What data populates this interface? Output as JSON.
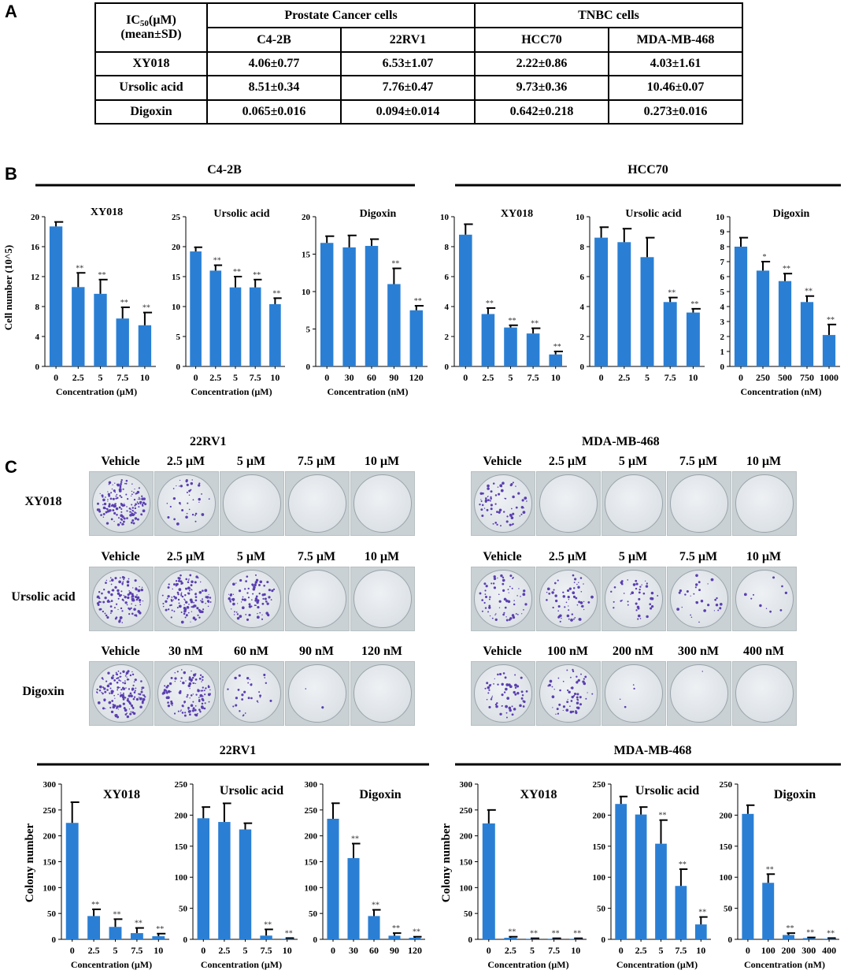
{
  "panels": {
    "A": "A",
    "B": "B",
    "C": "C"
  },
  "table": {
    "corner_line1_pre": "IC",
    "corner_sub": "50",
    "corner_line1_post": "(µM)",
    "corner_line2": "(mean±SD)",
    "groups": [
      "Prostate Cancer cells",
      "TNBC cells"
    ],
    "columns": [
      "C4-2B",
      "22RV1",
      "HCC70",
      "MDA-MB-468"
    ],
    "rows": [
      {
        "name": "XY018",
        "values": [
          "4.06±0.77",
          "6.53±1.07",
          "2.22±0.86",
          "4.03±1.61"
        ]
      },
      {
        "name": "Ursolic acid",
        "values": [
          "8.51±0.34",
          "7.76±0.47",
          "9.73±0.36",
          "10.46±0.07"
        ]
      },
      {
        "name": "Digoxin",
        "values": [
          "0.065±0.016",
          "0.094±0.014",
          "0.642±0.218",
          "0.273±0.016"
        ]
      }
    ]
  },
  "panel_c": {
    "groups": [
      {
        "title": "22RV1",
        "rows": [
          {
            "label": "XY018",
            "headers": [
              "Vehicle",
              "2.5 µM",
              "5 µM",
              "7.5 µM",
              "10 µM"
            ]
          },
          {
            "label": "Ursolic acid",
            "headers": [
              "Vehicle",
              "2.5 µM",
              "5 µM",
              "7.5 µM",
              "10 µM"
            ]
          },
          {
            "label": "Digoxin",
            "headers": [
              "Vehicle",
              "30 nM",
              "60 nM",
              "90 nM",
              "120 nM"
            ]
          }
        ]
      },
      {
        "title": "MDA-MB-468",
        "rows": [
          {
            "label": "",
            "headers": [
              "Vehicle",
              "2.5 µM",
              "5 µM",
              "7.5 µM",
              "10 µM"
            ]
          },
          {
            "label": "",
            "headers": [
              "Vehicle",
              "2.5 µM",
              "5 µM",
              "7.5 µM",
              "10 µM"
            ]
          },
          {
            "label": "",
            "headers": [
              "Vehicle",
              "100 nM",
              "200 nM",
              "300 nM",
              "400 nM"
            ]
          }
        ]
      }
    ]
  },
  "chart_data": [
    {
      "type": "bar",
      "group": "C4-2B",
      "title": "XY018",
      "categories": [
        "0",
        "2.5",
        "5",
        "7.5",
        "10"
      ],
      "values": [
        18.7,
        10.6,
        9.7,
        6.4,
        5.5
      ],
      "errors": [
        0.6,
        1.9,
        1.9,
        1.5,
        1.7
      ],
      "significance": [
        "",
        "**",
        "**",
        "**",
        "**"
      ],
      "ylim": [
        0,
        20
      ],
      "yticks": [
        0,
        4,
        8,
        12,
        16,
        20
      ],
      "xlabel": "Concentration (µM)",
      "ylabel": "Cell number (10^5)"
    },
    {
      "type": "bar",
      "group": "C4-2B",
      "title": "Ursolic acid",
      "categories": [
        "0",
        "2.5",
        "5",
        "7.5",
        "10"
      ],
      "values": [
        19.2,
        16.0,
        13.2,
        13.2,
        10.4
      ],
      "errors": [
        0.7,
        0.9,
        1.8,
        1.3,
        1.0
      ],
      "significance": [
        "",
        "**",
        "**",
        "**",
        "**"
      ],
      "ylim": [
        0,
        25
      ],
      "yticks": [
        0,
        5,
        10,
        15,
        20,
        25
      ],
      "xlabel": "Concentration (µM)",
      "ylabel": ""
    },
    {
      "type": "bar",
      "group": "C4-2B",
      "title": "Digoxin",
      "categories": [
        "0",
        "30",
        "60",
        "90",
        "120"
      ],
      "values": [
        16.5,
        15.9,
        16.1,
        11.0,
        7.5
      ],
      "errors": [
        0.9,
        1.6,
        0.9,
        2.1,
        0.6
      ],
      "significance": [
        "",
        "",
        "",
        "**",
        "**"
      ],
      "ylim": [
        0,
        20
      ],
      "yticks": [
        0,
        5,
        10,
        15,
        20
      ],
      "xlabel": "Concentration (nM)",
      "ylabel": ""
    },
    {
      "type": "bar",
      "group": "HCC70",
      "title": "XY018",
      "categories": [
        "0",
        "2.5",
        "5",
        "7.5",
        "10"
      ],
      "values": [
        8.8,
        3.5,
        2.6,
        2.2,
        0.8
      ],
      "errors": [
        0.7,
        0.4,
        0.15,
        0.35,
        0.2
      ],
      "significance": [
        "",
        "**",
        "**",
        "**",
        "**"
      ],
      "ylim": [
        0,
        10
      ],
      "yticks": [
        0,
        2,
        4,
        6,
        8,
        10
      ],
      "xlabel": "",
      "ylabel": ""
    },
    {
      "type": "bar",
      "group": "HCC70",
      "title": "Ursolic acid",
      "categories": [
        "0",
        "2.5",
        "5",
        "7.5",
        "10"
      ],
      "values": [
        8.6,
        8.3,
        7.3,
        4.3,
        3.6
      ],
      "errors": [
        0.7,
        0.9,
        1.3,
        0.3,
        0.25
      ],
      "significance": [
        "",
        "",
        "",
        "**",
        "**"
      ],
      "ylim": [
        0,
        10
      ],
      "yticks": [
        0,
        2,
        4,
        6,
        8,
        10
      ],
      "xlabel": "",
      "ylabel": ""
    },
    {
      "type": "bar",
      "group": "HCC70",
      "title": "Digoxin",
      "categories": [
        "0",
        "250",
        "500",
        "750",
        "1000"
      ],
      "values": [
        8.0,
        6.4,
        5.7,
        4.3,
        2.1
      ],
      "errors": [
        0.6,
        0.6,
        0.5,
        0.4,
        0.7
      ],
      "significance": [
        "",
        "*",
        "**",
        "**",
        "**"
      ],
      "ylim": [
        0,
        10
      ],
      "yticks": [
        0,
        1,
        2,
        3,
        4,
        5,
        6,
        7,
        8,
        9,
        10
      ],
      "xlabel": "Concentration (nM)",
      "ylabel": ""
    },
    {
      "type": "bar",
      "group": "22RV1",
      "title": "XY018",
      "categories": [
        "0",
        "2.5",
        "5",
        "7.5",
        "10"
      ],
      "values": [
        225,
        45,
        24,
        12,
        6
      ],
      "errors": [
        40,
        13,
        15,
        10,
        5
      ],
      "significance": [
        "",
        "**",
        "**",
        "**",
        "**"
      ],
      "ylim": [
        0,
        300
      ],
      "yticks": [
        0,
        50,
        100,
        150,
        200,
        250,
        300
      ],
      "xlabel": "Concentration (µM)",
      "ylabel": "Colony number"
    },
    {
      "type": "bar",
      "group": "22RV1",
      "title": "Ursolic acid",
      "categories": [
        "0",
        "2.5",
        "5",
        "7.5",
        "10"
      ],
      "values": [
        195,
        189,
        177,
        6,
        1
      ],
      "errors": [
        18,
        30,
        10,
        10,
        1
      ],
      "significance": [
        "",
        "",
        "",
        "**",
        "**"
      ],
      "ylim": [
        0,
        250
      ],
      "yticks": [
        0,
        50,
        100,
        150,
        200,
        250
      ],
      "xlabel": "Concentration (µM)",
      "ylabel": ""
    },
    {
      "type": "bar",
      "group": "22RV1",
      "title": "Digoxin",
      "categories": [
        "0",
        "30",
        "60",
        "90",
        "120"
      ],
      "values": [
        233,
        157,
        45,
        7,
        3
      ],
      "errors": [
        30,
        28,
        12,
        5,
        2
      ],
      "significance": [
        "",
        "**",
        "**",
        "**",
        "**"
      ],
      "ylim": [
        0,
        300
      ],
      "yticks": [
        0,
        50,
        100,
        150,
        200,
        250,
        300
      ],
      "xlabel": "",
      "ylabel": ""
    },
    {
      "type": "bar",
      "group": "MDA-MB-468",
      "title": "XY018",
      "categories": [
        "0",
        "2.5",
        "5",
        "7.5",
        "10"
      ],
      "values": [
        224,
        3,
        1,
        1,
        1
      ],
      "errors": [
        26,
        2,
        1,
        1,
        1
      ],
      "significance": [
        "",
        "**",
        "**",
        "**",
        "**"
      ],
      "ylim": [
        0,
        300
      ],
      "yticks": [
        0,
        50,
        100,
        150,
        200,
        250,
        300
      ],
      "xlabel": "Concentration (µM)",
      "ylabel": "Colony number"
    },
    {
      "type": "bar",
      "group": "MDA-MB-468",
      "title": "Ursolic acid",
      "categories": [
        "0",
        "2.5",
        "5",
        "7.5",
        "10"
      ],
      "values": [
        218,
        201,
        154,
        86,
        24
      ],
      "errors": [
        12,
        12,
        38,
        27,
        12
      ],
      "significance": [
        "",
        "",
        "**",
        "**",
        "**"
      ],
      "ylim": [
        0,
        250
      ],
      "yticks": [
        0,
        50,
        100,
        150,
        200,
        250
      ],
      "xlabel": "Concentration (µM)",
      "ylabel": ""
    },
    {
      "type": "bar",
      "group": "MDA-MB-468",
      "title": "Digoxin",
      "categories": [
        "0",
        "100",
        "200",
        "300",
        "400"
      ],
      "values": [
        202,
        91,
        7,
        2,
        1
      ],
      "errors": [
        14,
        14,
        3,
        1,
        1
      ],
      "significance": [
        "",
        "**",
        "**",
        "**",
        "**"
      ],
      "ylim": [
        0,
        250
      ],
      "yticks": [
        0,
        50,
        100,
        150,
        200,
        250
      ],
      "xlabel": "Concentration (nM)",
      "ylabel": ""
    }
  ]
}
